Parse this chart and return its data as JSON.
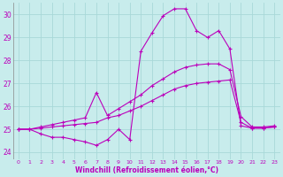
{
  "xlabel": "Windchill (Refroidissement éolien,°C)",
  "bg_color": "#c8ecec",
  "grid_color": "#a8d8d8",
  "line_color": "#bb00bb",
  "xlim_min": -0.5,
  "xlim_max": 23.5,
  "ylim_min": 23.7,
  "ylim_max": 30.5,
  "yticks": [
    24,
    25,
    26,
    27,
    28,
    29,
    30
  ],
  "xticks": [
    0,
    1,
    2,
    3,
    4,
    5,
    6,
    7,
    8,
    9,
    10,
    11,
    12,
    13,
    14,
    15,
    16,
    17,
    18,
    19,
    20,
    21,
    22,
    23
  ],
  "line1_x": [
    0,
    1,
    2,
    3,
    4,
    5,
    6,
    7,
    8,
    9,
    10,
    11,
    12,
    13,
    14,
    15,
    16,
    17,
    18,
    19,
    20,
    21,
    22,
    23
  ],
  "line1_y": [
    25.0,
    25.0,
    24.8,
    24.65,
    24.65,
    24.55,
    24.45,
    24.3,
    24.55,
    25.0,
    24.55,
    28.4,
    29.2,
    29.95,
    30.25,
    30.25,
    29.3,
    29.0,
    29.3,
    28.5,
    25.15,
    25.05,
    25.05,
    25.1
  ],
  "line2_x": [
    0,
    1,
    2,
    3,
    4,
    5,
    6,
    7,
    8,
    9,
    10,
    11,
    12,
    13,
    14,
    15,
    16,
    17,
    18,
    19,
    20,
    21,
    22,
    23
  ],
  "line2_y": [
    25.0,
    25.0,
    25.1,
    25.2,
    25.3,
    25.4,
    25.5,
    26.6,
    25.6,
    25.9,
    26.2,
    26.5,
    26.9,
    27.2,
    27.5,
    27.7,
    27.8,
    27.85,
    27.85,
    27.6,
    25.55,
    25.1,
    25.1,
    25.15
  ],
  "line3_x": [
    0,
    1,
    2,
    3,
    4,
    5,
    6,
    7,
    8,
    9,
    10,
    11,
    12,
    13,
    14,
    15,
    16,
    17,
    18,
    19,
    20,
    21,
    22,
    23
  ],
  "line3_y": [
    25.0,
    25.0,
    25.05,
    25.1,
    25.15,
    25.2,
    25.25,
    25.3,
    25.5,
    25.6,
    25.8,
    26.0,
    26.25,
    26.5,
    26.75,
    26.9,
    27.0,
    27.05,
    27.1,
    27.15,
    25.3,
    25.05,
    25.05,
    25.1
  ],
  "markersize": 3,
  "linewidth": 0.8
}
